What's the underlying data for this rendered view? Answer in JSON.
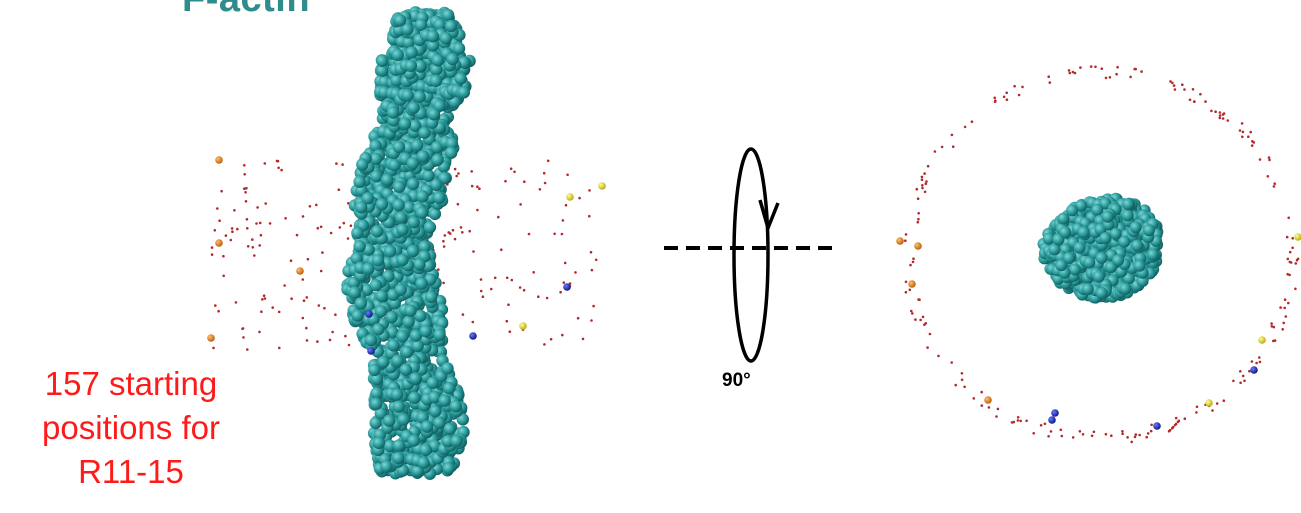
{
  "title": "F-actin",
  "caption": [
    "157 starting",
    "positions for",
    "R11-15"
  ],
  "rotation_label": "90°",
  "colors": {
    "title": "#2f8c8c",
    "caption": "#ff1a1a",
    "protein": "#2a9a9a",
    "site_dot": "#b22a2a",
    "marker_orange": "#e07a12",
    "marker_yellow": "#f2e21a",
    "marker_blue": "#1a2ab8"
  },
  "icons": [
    "rotation-axis-icon"
  ]
}
